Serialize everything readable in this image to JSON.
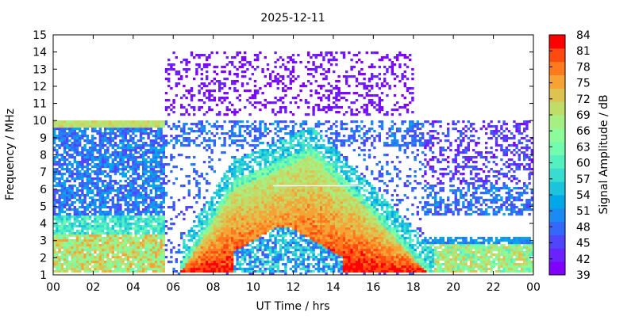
{
  "chart_data": {
    "type": "heatmap",
    "title": "2025-12-11",
    "xlabel": "UT Time / hrs",
    "ylabel": "Frequency / MHz",
    "colorbar_label": "Signal Amplitude / dB",
    "xlim": [
      0,
      24
    ],
    "ylim": [
      1,
      15
    ],
    "x_ticks": [
      "00",
      "02",
      "04",
      "06",
      "08",
      "10",
      "12",
      "14",
      "16",
      "18",
      "20",
      "22",
      "00"
    ],
    "y_ticks": [
      "1",
      "2",
      "3",
      "4",
      "5",
      "6",
      "7",
      "8",
      "9",
      "10",
      "11",
      "12",
      "13",
      "14",
      "15"
    ],
    "colorbar_range": [
      39,
      84
    ],
    "colorbar_ticks": [
      "39",
      "42",
      "45",
      "48",
      "51",
      "54",
      "57",
      "60",
      "63",
      "66",
      "69",
      "72",
      "75",
      "78",
      "81",
      "84"
    ],
    "colorbar_colors": [
      "#8000ff",
      "#6a23ff",
      "#4f46fc",
      "#3468f9",
      "#1b8af2",
      "#00a8e8",
      "#1cc3dd",
      "#39dccf",
      "#55f0c0",
      "#71fcaf",
      "#8cfc9a",
      "#a6f083",
      "#c0dd6a",
      "#ddc350",
      "#f6a234",
      "#ff7a1f",
      "#ff4a0f",
      "#ff0000"
    ],
    "regions": [
      {
        "name": "background-noise-morning",
        "x": [
          0,
          5.5
        ],
        "y": [
          1,
          10
        ],
        "level_db": 48
      },
      {
        "name": "morning-low-band",
        "x": [
          0,
          5.5
        ],
        "y": [
          1.2,
          3.5
        ],
        "level_db": 72
      },
      {
        "name": "morning-top-band",
        "x": [
          0,
          5.5
        ],
        "y": [
          9.6,
          10
        ],
        "level_db": 70
      },
      {
        "name": "daytime-f-layer",
        "x": [
          6.5,
          18.5
        ],
        "y": [
          1.5,
          8.5
        ],
        "level_db": 78
      },
      {
        "name": "daytime-high-freq-noise",
        "x": [
          5.5,
          18
        ],
        "y": [
          10,
          14
        ],
        "level_db": 40
      },
      {
        "name": "evening-band",
        "x": [
          18.5,
          24
        ],
        "y": [
          1.2,
          3
        ],
        "level_db": 72
      },
      {
        "name": "evening-background",
        "x": [
          18.5,
          24
        ],
        "y": [
          3,
          10
        ],
        "level_db": 46
      }
    ]
  }
}
